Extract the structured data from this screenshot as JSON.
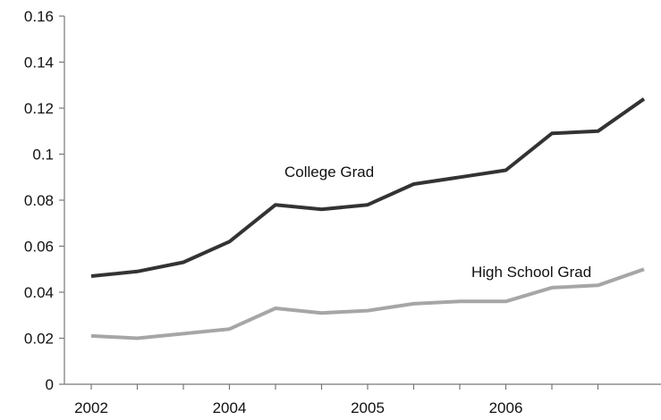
{
  "chart_data": {
    "type": "line",
    "title": "",
    "xlabel": "",
    "ylabel": "",
    "x": [
      0,
      1,
      2,
      3,
      4,
      5,
      6,
      7,
      8,
      9,
      10,
      11,
      12
    ],
    "x_ticks": [
      {
        "pos": 0,
        "label": "2002"
      },
      {
        "pos": 1,
        "label": ""
      },
      {
        "pos": 2,
        "label": ""
      },
      {
        "pos": 3,
        "label": "2004"
      },
      {
        "pos": 4,
        "label": ""
      },
      {
        "pos": 5,
        "label": ""
      },
      {
        "pos": 6,
        "label": "2005"
      },
      {
        "pos": 7,
        "label": ""
      },
      {
        "pos": 8,
        "label": ""
      },
      {
        "pos": 9,
        "label": "2006"
      },
      {
        "pos": 10,
        "label": ""
      },
      {
        "pos": 11,
        "label": ""
      }
    ],
    "ylim": [
      0,
      0.16
    ],
    "yticks": [
      "0",
      "0.02",
      "0.04",
      "0.06",
      "0.08",
      "0.1",
      "0.12",
      "0.14",
      "0.16"
    ],
    "grid": false,
    "series": [
      {
        "name": "College Grad",
        "color": "#333333",
        "values": [
          0.047,
          0.049,
          0.053,
          0.062,
          0.078,
          0.076,
          0.078,
          0.087,
          0.09,
          0.093,
          0.109,
          0.11,
          0.124
        ]
      },
      {
        "name": "High School Grad",
        "color": "#a6a6a6",
        "values": [
          0.021,
          0.02,
          0.022,
          0.024,
          0.033,
          0.031,
          0.032,
          0.035,
          0.036,
          0.036,
          0.042,
          0.043,
          0.05
        ]
      }
    ]
  }
}
